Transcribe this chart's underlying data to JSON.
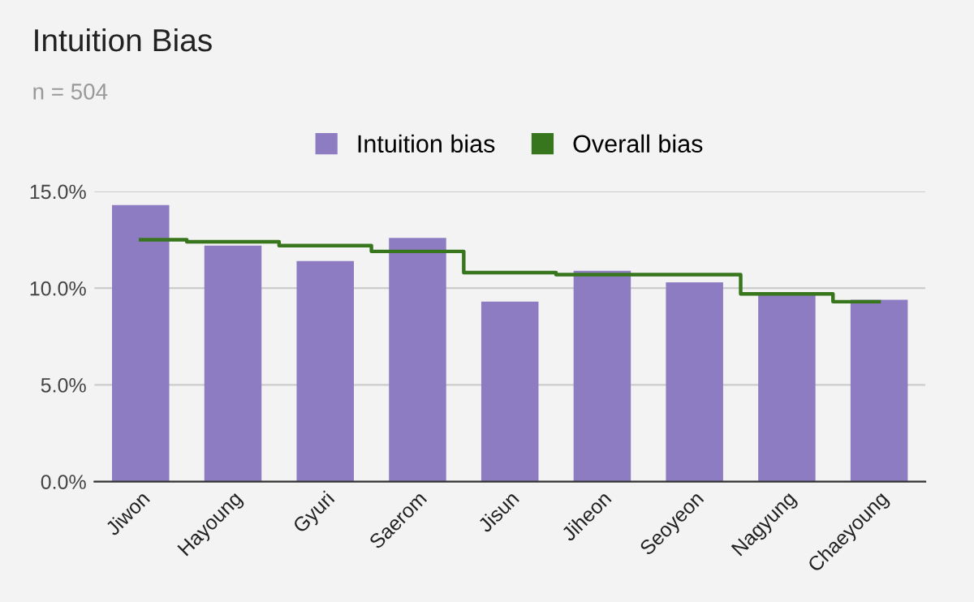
{
  "chart_data": {
    "type": "bar",
    "title": "Intuition Bias",
    "subtitle": "n = 504",
    "categories": [
      "Jiwon",
      "Hayoung",
      "Gyuri",
      "Saerom",
      "Jisun",
      "Jiheon",
      "Seoyeon",
      "Nagyung",
      "Chaeyoung"
    ],
    "series": [
      {
        "name": "Intuition bias",
        "color": "#8e7cc3",
        "values": [
          14.3,
          12.2,
          11.4,
          12.6,
          9.3,
          10.9,
          10.3,
          9.8,
          9.4
        ]
      },
      {
        "name": "Overall bias",
        "type": "step",
        "color": "#38761d",
        "values": [
          12.5,
          12.4,
          12.2,
          11.9,
          10.8,
          10.7,
          10.7,
          9.7,
          9.3
        ]
      }
    ],
    "ylim": [
      0,
      15
    ],
    "yticks": [
      {
        "value": 0,
        "label": "0.0%"
      },
      {
        "value": 5,
        "label": "5.0%"
      },
      {
        "value": 10,
        "label": "10.0%"
      },
      {
        "value": 15,
        "label": "15.0%"
      }
    ],
    "grid": "y",
    "legend": "top"
  }
}
